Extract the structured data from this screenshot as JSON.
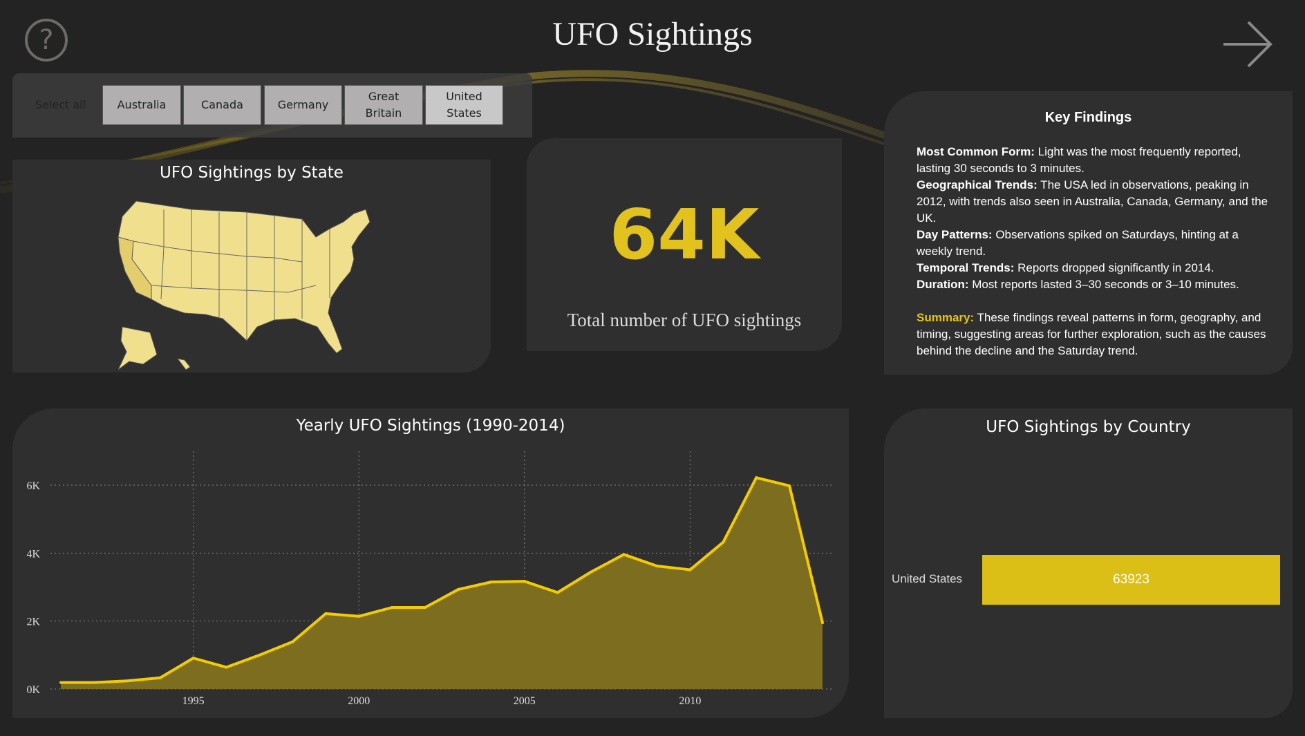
{
  "header": {
    "title": "UFO Sightings",
    "help_icon": "question-circle-icon",
    "next_icon": "arrow-right-icon"
  },
  "slicer": {
    "select_all": "Select all",
    "options": [
      {
        "label": "Australia",
        "selected": false
      },
      {
        "label": "Canada",
        "selected": false
      },
      {
        "label": "Germany",
        "selected": false
      },
      {
        "label": "Great Britain",
        "selected": false
      },
      {
        "label": "United States",
        "selected": true
      }
    ]
  },
  "map": {
    "title": "UFO Sightings by State",
    "fill_color": "#f0e08e",
    "highlight_color": "#e6d070"
  },
  "kpi": {
    "value": "64K",
    "label": "Total number of UFO sightings",
    "color": "#e2c21c"
  },
  "findings": {
    "title": "Key Findings",
    "items": [
      {
        "label": "Most Common Form:",
        "text": " Light was the most frequently reported, lasting 30 seconds to 3 minutes."
      },
      {
        "label": "Geographical Trends:",
        "text": " The USA led in observations, peaking in 2012, with trends also seen in Australia, Canada, Germany, and the UK."
      },
      {
        "label": "Day Patterns:",
        "text": " Observations spiked on Saturdays, hinting at a weekly trend."
      },
      {
        "label": "Temporal Trends:",
        "text": " Reports dropped significantly in 2014."
      },
      {
        "label": "Duration:",
        "text": " Most reports lasted 3–30 seconds or 3–10 minutes."
      }
    ],
    "summary_label": "Summary:",
    "summary_text": " These findings reveal patterns in form, geography, and timing, suggesting areas for further exploration, such as the causes behind the decline and the Saturday trend."
  },
  "chart_data": [
    {
      "type": "area",
      "title": "Yearly UFO Sightings (1990-2014)",
      "xlabel": "",
      "ylabel": "",
      "x": [
        1991,
        1992,
        1993,
        1994,
        1995,
        1996,
        1997,
        1998,
        1999,
        2000,
        2001,
        2002,
        2003,
        2004,
        2005,
        2006,
        2007,
        2008,
        2009,
        2010,
        2011,
        2012,
        2013,
        2014
      ],
      "y": [
        190,
        190,
        240,
        330,
        910,
        640,
        1000,
        1390,
        2220,
        2140,
        2400,
        2400,
        2930,
        3150,
        3170,
        2840,
        3440,
        3960,
        3620,
        3510,
        4320,
        6220,
        5980,
        1950
      ],
      "xticks": [
        "1995",
        "2000",
        "2005",
        "2010"
      ],
      "yticks": [
        "0K",
        "2K",
        "4K",
        "6K"
      ],
      "ylim": [
        0,
        6800
      ],
      "grid": true,
      "line_color": "#f2cc00",
      "fill_color": "#7d6e1f"
    },
    {
      "type": "bar",
      "title": "UFO Sightings by Country",
      "categories": [
        "United States"
      ],
      "values": [
        63923
      ],
      "data_labels": [
        "63923"
      ],
      "bar_color": "#dcbf16"
    }
  ]
}
